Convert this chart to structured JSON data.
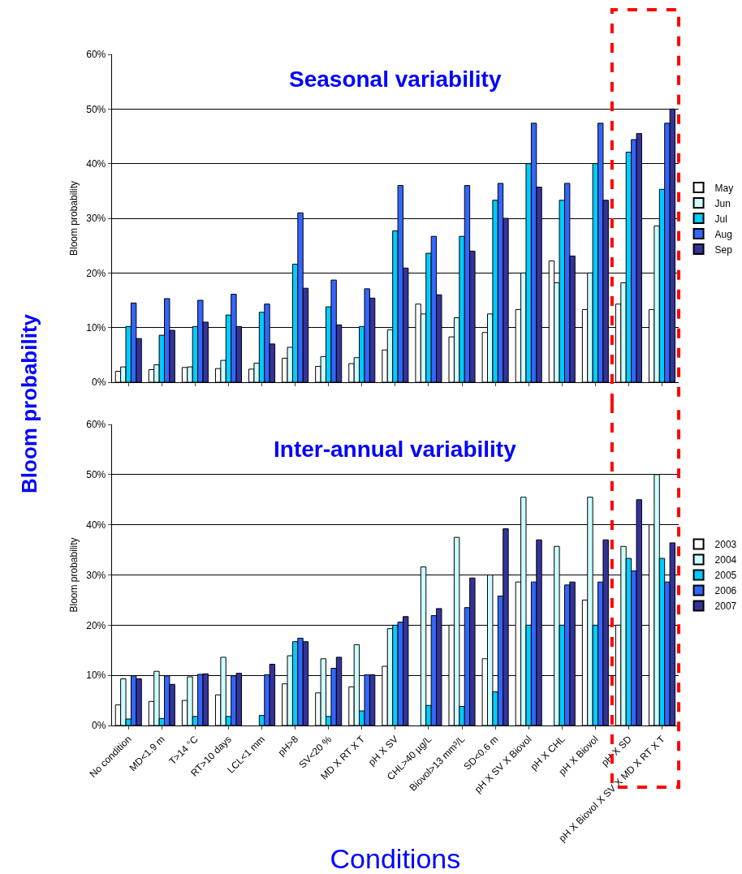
{
  "chart_data": [
    {
      "type": "bar",
      "title": "Seasonal variability",
      "ylabel": "Bloom probability",
      "categories": [
        null,
        null,
        null,
        null,
        null,
        null,
        null,
        null,
        null,
        null,
        null,
        null,
        null,
        null,
        null,
        null,
        null
      ],
      "series": [
        {
          "name": "May",
          "color": "#ffffff",
          "values": [
            2,
            2.3,
            2.7,
            2.5,
            2.4,
            4.4,
            2.9,
            3.4,
            5.9,
            14.3,
            8.3,
            9.1,
            13.3,
            22.2,
            13.3,
            14.3,
            13.3
          ]
        },
        {
          "name": "Jun",
          "color": "#ccffff",
          "values": [
            2.8,
            3.2,
            2.8,
            4,
            3.5,
            6.4,
            4.7,
            4.5,
            9.6,
            12.5,
            11.8,
            12.5,
            20,
            18.2,
            20,
            18.2,
            28.6
          ]
        },
        {
          "name": "Jul",
          "color": "#00ccff",
          "values": [
            10.2,
            8.6,
            10.2,
            12.3,
            12.8,
            21.6,
            13.8,
            10.2,
            27.7,
            23.6,
            26.7,
            33.3,
            40,
            33.3,
            40,
            42.1,
            35.3
          ]
        },
        {
          "name": "Aug",
          "color": "#3366ff",
          "values": [
            14.5,
            15.3,
            15,
            16.1,
            14.3,
            31,
            18.7,
            17.1,
            36,
            26.7,
            36,
            36.4,
            47.4,
            36.4,
            47.4,
            44.4,
            47.4
          ]
        },
        {
          "name": "Sep",
          "color": "#333399",
          "values": [
            8,
            9.5,
            11,
            10.2,
            7,
            17.2,
            10.5,
            15.4,
            20.9,
            16,
            24,
            30,
            35.7,
            23.1,
            33.3,
            45.5,
            50
          ]
        }
      ],
      "ylim": [
        0,
        60
      ],
      "yticks": [
        {
          "value": 0,
          "label": "0%"
        },
        {
          "value": 10,
          "label": "10%"
        },
        {
          "value": 20,
          "label": "20%"
        },
        {
          "value": 30,
          "label": "30%"
        },
        {
          "value": 40,
          "label": "40%"
        },
        {
          "value": 50,
          "label": "50%"
        },
        {
          "value": 60,
          "label": "60%"
        }
      ],
      "grid": "y",
      "legend": "right",
      "tick_labels": "y",
      "annotations": [
        "Bloom probability"
      ]
    },
    {
      "type": "bar",
      "title": "Inter-annual variability",
      "ylabel": "Bloom probability",
      "xlabel": "Conditions",
      "categories": [
        "No condition",
        "MD<1.9 m",
        "T>14 °C",
        "RT>10 days",
        "LCL<1 mm",
        "pH>8",
        "SV<20 %",
        "MD X RT X T",
        "pH X SV",
        "CHL>40 µg/L",
        "Biovol>13 mm³/L",
        "SD<0.6 m",
        "pH X SV X Biovol",
        "pH X CHL",
        "pH X Biovol",
        "pH X SD",
        "pH X Biovol X SV X MD X RT X T"
      ],
      "series": [
        {
          "name": "2003",
          "color": "#ffffff",
          "values": [
            4.1,
            4.8,
            5,
            6.1,
            null,
            8.3,
            6.5,
            7.7,
            11.8,
            null,
            20,
            13.3,
            28.6,
            null,
            25,
            20,
            40
          ]
        },
        {
          "name": "2004",
          "color": "#ccffff",
          "values": [
            9.3,
            10.8,
            9.7,
            13.6,
            null,
            13.9,
            13.3,
            16.1,
            19.3,
            31.6,
            37.5,
            30,
            45.5,
            35.7,
            45.5,
            35.7,
            50
          ]
        },
        {
          "name": "2005",
          "color": "#00ccff",
          "values": [
            1.3,
            1.4,
            1.8,
            1.8,
            2,
            16.7,
            1.8,
            2.9,
            20,
            4,
            3.8,
            6.7,
            20,
            20,
            20,
            33.3,
            33.3
          ]
        },
        {
          "name": "2006",
          "color": "#3366ff",
          "values": [
            9.9,
            9.9,
            10.2,
            9.9,
            10.1,
            17.4,
            11.4,
            10.1,
            20.6,
            21.9,
            23.5,
            25.8,
            28.6,
            28,
            28.6,
            30.8,
            28.6
          ]
        },
        {
          "name": "2007",
          "color": "#333399",
          "values": [
            9.3,
            8.2,
            10.3,
            10.4,
            12.2,
            16.7,
            13.6,
            10.1,
            21.7,
            23.3,
            29.4,
            39.2,
            37,
            28.6,
            37,
            45,
            36.4
          ]
        }
      ],
      "ylim": [
        0,
        60
      ],
      "yticks": [
        {
          "value": 0,
          "label": "0%"
        },
        {
          "value": 10,
          "label": "10%"
        },
        {
          "value": 20,
          "label": "20%"
        },
        {
          "value": 30,
          "label": "30%"
        },
        {
          "value": 40,
          "label": "40%"
        },
        {
          "value": 50,
          "label": "50%"
        },
        {
          "value": 60,
          "label": "60%"
        }
      ],
      "grid": "y",
      "legend": "right"
    }
  ]
}
